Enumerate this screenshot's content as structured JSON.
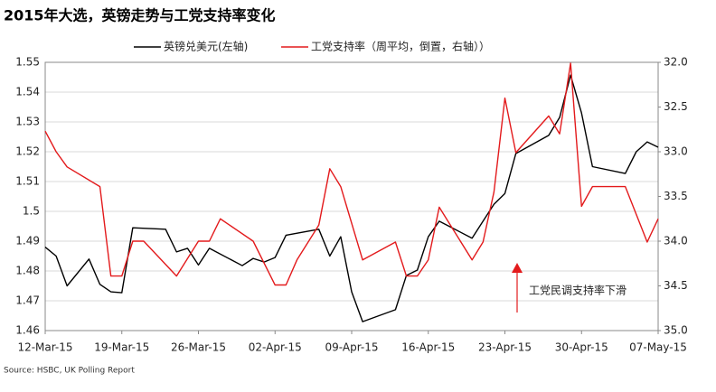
{
  "chart_data": {
    "type": "line",
    "title": "2015年大选，英镑走势与工党支持率变化",
    "source": "Source:  HSBC, UK Polling Report",
    "annotation": "工党民调支持率下滑",
    "grid": true,
    "xlim": [
      "2015-03-12",
      "2015-05-07"
    ],
    "xticks": [
      {
        "value": "2015-03-12",
        "label": "12-Mar-15"
      },
      {
        "value": "2015-03-19",
        "label": "19-Mar-15"
      },
      {
        "value": "2015-03-26",
        "label": "26-Mar-15"
      },
      {
        "value": "2015-04-02",
        "label": "02-Apr-15"
      },
      {
        "value": "2015-04-09",
        "label": "09-Apr-15"
      },
      {
        "value": "2015-04-16",
        "label": "16-Apr-15"
      },
      {
        "value": "2015-04-23",
        "label": "23-Apr-15"
      },
      {
        "value": "2015-04-30",
        "label": "30-Apr-15"
      },
      {
        "value": "2015-05-07",
        "label": "07-May-15"
      }
    ],
    "ylim": [
      1.46,
      1.55
    ],
    "yticks": [
      1.46,
      1.47,
      1.48,
      1.49,
      1.5,
      1.51,
      1.52,
      1.53,
      1.54,
      1.55
    ],
    "y2lim": [
      35,
      32
    ],
    "y2ticks": [
      {
        "value": 32,
        "label": "32.0"
      },
      32.5,
      {
        "value": 33,
        "label": "33.0"
      },
      33.5,
      {
        "value": 34,
        "label": "34.0"
      },
      34.5,
      {
        "value": 35,
        "label": "35.0"
      }
    ],
    "series": [
      {
        "name": "英镑兑美元(左轴)",
        "color": "#000000",
        "x": [
          "2015-03-12",
          "2015-03-13",
          "2015-03-14",
          "2015-03-16",
          "2015-03-17",
          "2015-03-18",
          "2015-03-19",
          "2015-03-20",
          "2015-03-23",
          "2015-03-24",
          "2015-03-25",
          "2015-03-26",
          "2015-03-27",
          "2015-03-30",
          "2015-03-31",
          "2015-04-01",
          "2015-04-02",
          "2015-04-03",
          "2015-04-06",
          "2015-04-07",
          "2015-04-08",
          "2015-04-09",
          "2015-04-10",
          "2015-04-13",
          "2015-04-14",
          "2015-04-15",
          "2015-04-16",
          "2015-04-17",
          "2015-04-20",
          "2015-04-21",
          "2015-04-22",
          "2015-04-23",
          "2015-04-24",
          "2015-04-27",
          "2015-04-28",
          "2015-04-29",
          "2015-04-30",
          "2015-05-01",
          "2015-05-04",
          "2015-05-05",
          "2015-05-06",
          "2015-05-07"
        ],
        "values": [
          1.488,
          1.485,
          1.475,
          1.484,
          1.4755,
          1.473,
          1.4727,
          1.4945,
          1.494,
          1.4864,
          1.4876,
          1.482,
          1.4876,
          1.4818,
          1.4842,
          1.483,
          1.4845,
          1.492,
          1.494,
          1.485,
          1.4915,
          1.473,
          1.463,
          1.467,
          1.4785,
          1.4803,
          1.4915,
          1.4967,
          1.491,
          1.4967,
          1.5024,
          1.506,
          1.5194,
          1.5255,
          1.5315,
          1.5457,
          1.533,
          1.515,
          1.5127,
          1.52,
          1.5233,
          1.5215
        ]
      },
      {
        "name": "工党支持率（周平均，倒置，右轴））",
        "color": "#e31a1c",
        "axis": "y2",
        "x": [
          "2015-03-12",
          "2015-03-13",
          "2015-03-14",
          "2015-03-17",
          "2015-03-18",
          "2015-03-19",
          "2015-03-20",
          "2015-03-21",
          "2015-03-24",
          "2015-03-26",
          "2015-03-27",
          "2015-03-28",
          "2015-03-31",
          "2015-04-02",
          "2015-04-03",
          "2015-04-04",
          "2015-04-06",
          "2015-04-07",
          "2015-04-08",
          "2015-04-10",
          "2015-04-13",
          "2015-04-14",
          "2015-04-15",
          "2015-04-16",
          "2015-04-17",
          "2015-04-20",
          "2015-04-21",
          "2015-04-22",
          "2015-04-23",
          "2015-04-24",
          "2015-04-27",
          "2015-04-28",
          "2015-04-29",
          "2015-04-30",
          "2015-05-01",
          "2015-05-04",
          "2015-05-06",
          "2015-05-07"
        ],
        "values": [
          32.77,
          33.0,
          33.17,
          33.39,
          34.39,
          34.39,
          34.0,
          34.0,
          34.39,
          34.0,
          34.0,
          33.75,
          34.0,
          34.49,
          34.49,
          34.21,
          33.82,
          33.19,
          33.39,
          34.21,
          34.01,
          34.39,
          34.39,
          34.21,
          33.62,
          34.21,
          34.01,
          33.45,
          32.4,
          33.01,
          32.6,
          32.8,
          32.01,
          33.61,
          33.39,
          33.39,
          34.01,
          33.75
        ]
      }
    ]
  }
}
